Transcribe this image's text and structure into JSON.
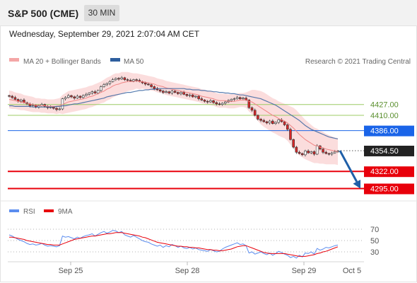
{
  "header": {
    "title": "S&P 500 (CME)",
    "timeframe": "30 MIN"
  },
  "date_text": "Wednesday, September 29, 2021 2:07:04 AM CET",
  "colors": {
    "bollinger": "#f4a6a6",
    "ma50": "#2e5e9e",
    "support": "#e8000b",
    "resistance": "#9ccc65",
    "pivot": "#1a64e8",
    "up": "#ffffff",
    "down": "#d62728",
    "rsi": "#5b8def",
    "rsi_ma": "#e8000b",
    "arrow": "#1f5fa8"
  },
  "chart_data": [
    {
      "type": "candlestick",
      "legend": [
        {
          "name": "MA 20 + Bollinger Bands",
          "color": "#f4a6a6"
        },
        {
          "name": "MA 50",
          "color": "#2e5e9e"
        }
      ],
      "credit": "Research © 2021 Trading Central",
      "ylim": [
        4280,
        4480
      ],
      "levels": [
        {
          "value": 4427.0,
          "label": "4427.00",
          "kind": "resistance"
        },
        {
          "value": 4410.0,
          "label": "4410.00",
          "kind": "resistance"
        },
        {
          "value": 4386.0,
          "label": "4386.00",
          "kind": "pivot"
        },
        {
          "value": 4354.5,
          "label": "4354.50",
          "kind": "last"
        },
        {
          "value": 4322.0,
          "label": "4322.00",
          "kind": "support"
        },
        {
          "value": 4295.0,
          "label": "4295.00",
          "kind": "support"
        }
      ],
      "forecast": {
        "from": 4354.5,
        "to": 4295.0,
        "direction": "down"
      },
      "closes": [
        4440,
        4438,
        4435,
        4432,
        4434,
        4430,
        4428,
        4425,
        4426,
        4423,
        4425,
        4427,
        4424,
        4422,
        4423,
        4421,
        4419,
        4420,
        4436,
        4438,
        4441,
        4439,
        4437,
        4440,
        4438,
        4441,
        4443,
        4445,
        4447,
        4445,
        4449,
        4455,
        4458,
        4460,
        4463,
        4466,
        4468,
        4467,
        4469,
        4466,
        4465,
        4464,
        4466,
        4465,
        4463,
        4461,
        4459,
        4458,
        4455,
        4452,
        4450,
        4448,
        4446,
        4447,
        4445,
        4448,
        4446,
        4444,
        4446,
        4443,
        4441,
        4442,
        4439,
        4440,
        4436,
        4434,
        4432,
        4431,
        4433,
        4430,
        4428,
        4427,
        4429,
        4431,
        4433,
        4435,
        4436,
        4438,
        4436,
        4437,
        4434,
        4422,
        4418,
        4410,
        4404,
        4402,
        4400,
        4398,
        4401,
        4397,
        4399,
        4403,
        4400,
        4395,
        4388,
        4372,
        4360,
        4352,
        4350,
        4348,
        4354,
        4351,
        4353,
        4349,
        4362,
        4357,
        4352,
        4350,
        4349,
        4351,
        4353,
        4354
      ],
      "bb_mid": [
        4435,
        4434,
        4433,
        4432,
        4431,
        4430,
        4429,
        4428,
        4427,
        4426,
        4426,
        4425,
        4425,
        4424,
        4424,
        4424,
        4424,
        4425,
        4427,
        4429,
        4431,
        4432,
        4433,
        4434,
        4435,
        4436,
        4437,
        4439,
        4440,
        4442,
        4444,
        4446,
        4448,
        4451,
        4453,
        4456,
        4458,
        4459,
        4461,
        4462,
        4463,
        4463,
        4463,
        4464,
        4463,
        4463,
        4462,
        4461,
        4460,
        4459,
        4457,
        4456,
        4455,
        4453,
        4452,
        4451,
        4450,
        4449,
        4448,
        4447,
        4446,
        4445,
        4444,
        4443,
        4442,
        4440,
        4439,
        4438,
        4437,
        4436,
        4434,
        4433,
        4433,
        4433,
        4432,
        4432,
        4432,
        4433,
        4434,
        4434,
        4434,
        4432,
        4431,
        4428,
        4425,
        4422,
        4419,
        4416,
        4413,
        4410,
        4408,
        4405,
        4403,
        4401,
        4398,
        4394,
        4390,
        4385,
        4380,
        4376,
        4372,
        4369,
        4366,
        4363,
        4362,
        4360,
        4359,
        4357,
        4356,
        4355,
        4354,
        4353
      ],
      "bb_width": [
        14,
        14,
        13,
        13,
        13,
        12,
        12,
        12,
        12,
        11,
        11,
        11,
        11,
        11,
        11,
        11,
        12,
        12,
        15,
        16,
        17,
        17,
        17,
        17,
        17,
        17,
        17,
        17,
        17,
        17,
        17,
        17,
        18,
        18,
        18,
        18,
        18,
        17,
        17,
        16,
        15,
        14,
        13,
        12,
        12,
        11,
        11,
        11,
        11,
        11,
        11,
        11,
        11,
        11,
        11,
        11,
        11,
        11,
        11,
        11,
        11,
        11,
        11,
        11,
        11,
        11,
        11,
        11,
        11,
        11,
        11,
        11,
        11,
        11,
        11,
        11,
        11,
        11,
        11,
        11,
        12,
        16,
        19,
        22,
        24,
        26,
        27,
        27,
        27,
        27,
        27,
        27,
        27,
        27,
        28,
        30,
        32,
        33,
        33,
        32,
        31,
        30,
        29,
        28,
        27,
        26,
        25,
        24,
        23,
        22,
        21,
        21
      ],
      "ma50": [
        4425,
        4425,
        4424,
        4424,
        4424,
        4424,
        4424,
        4424,
        4423,
        4423,
        4423,
        4423,
        4423,
        4423,
        4423,
        4423,
        4424,
        4424,
        4425,
        4425,
        4426,
        4427,
        4428,
        4428,
        4429,
        4430,
        4431,
        4432,
        4433,
        4434,
        4435,
        4436,
        4437,
        4439,
        4440,
        4441,
        4442,
        4443,
        4444,
        4445,
        4446,
        4446,
        4447,
        4448,
        4449,
        4449,
        4450,
        4450,
        4451,
        4451,
        4452,
        4452,
        4452,
        4452,
        4452,
        4452,
        4452,
        4452,
        4452,
        4452,
        4451,
        4451,
        4450,
        4450,
        4450,
        4449,
        4449,
        4448,
        4448,
        4447,
        4447,
        4446,
        4446,
        4445,
        4445,
        4444,
        4444,
        4443,
        4442,
        4442,
        4441,
        4440,
        4439,
        4438,
        4437,
        4436,
        4434,
        4432,
        4430,
        4428,
        4426,
        4423,
        4420,
        4417,
        4414,
        4411,
        4408,
        4405,
        4402,
        4398,
        4394,
        4391,
        4388,
        4386,
        4384,
        4382,
        4380,
        4378,
        4376,
        4375,
        4374,
        4373
      ],
      "x_ticks": [
        "Sep 25",
        "Sep 28",
        "Sep 29",
        "Oct 5"
      ]
    },
    {
      "type": "line",
      "legend": [
        {
          "name": "RSI",
          "color": "#5b8def"
        },
        {
          "name": "9MA",
          "color": "#e8000b"
        }
      ],
      "ylim": [
        15,
        85
      ],
      "y_ticks": [
        "70",
        "50",
        "30"
      ],
      "y_tick_values": [
        70,
        50,
        30
      ],
      "rsi": [
        60,
        58,
        55,
        52,
        50,
        48,
        45,
        43,
        44,
        42,
        43,
        45,
        42,
        40,
        41,
        40,
        39,
        41,
        58,
        56,
        57,
        55,
        53,
        56,
        54,
        57,
        59,
        60,
        62,
        58,
        61,
        64,
        66,
        63,
        65,
        68,
        67,
        64,
        66,
        60,
        58,
        56,
        59,
        56,
        53,
        50,
        48,
        47,
        44,
        42,
        40,
        42,
        38,
        41,
        39,
        43,
        41,
        38,
        40,
        37,
        36,
        38,
        35,
        37,
        34,
        33,
        32,
        31,
        34,
        32,
        30,
        31,
        35,
        38,
        40,
        42,
        44,
        46,
        43,
        44,
        41,
        28,
        30,
        26,
        28,
        30,
        27,
        25,
        28,
        24,
        27,
        31,
        29,
        26,
        24,
        20,
        22,
        19,
        24,
        21,
        28,
        27,
        30,
        26,
        36,
        33,
        35,
        38,
        37,
        39,
        41,
        42
      ],
      "rsi_ma": [
        56,
        56,
        55,
        54,
        53,
        52,
        50,
        49,
        48,
        47,
        46,
        45,
        44,
        43,
        43,
        42,
        42,
        42,
        44,
        46,
        48,
        50,
        52,
        53,
        54,
        55,
        56,
        57,
        58,
        58,
        59,
        60,
        61,
        62,
        62,
        63,
        64,
        64,
        64,
        63,
        62,
        61,
        60,
        59,
        58,
        56,
        55,
        53,
        51,
        49,
        47,
        46,
        45,
        44,
        43,
        42,
        41,
        40,
        40,
        39,
        39,
        38,
        38,
        37,
        37,
        36,
        35,
        34,
        34,
        33,
        33,
        32,
        32,
        33,
        34,
        35,
        37,
        39,
        40,
        41,
        41,
        39,
        37,
        35,
        33,
        31,
        29,
        28,
        27,
        27,
        27,
        27,
        27,
        27,
        26,
        25,
        24,
        23,
        22,
        22,
        22,
        23,
        24,
        25,
        27,
        28,
        30,
        31,
        33,
        35,
        37,
        39
      ]
    }
  ]
}
